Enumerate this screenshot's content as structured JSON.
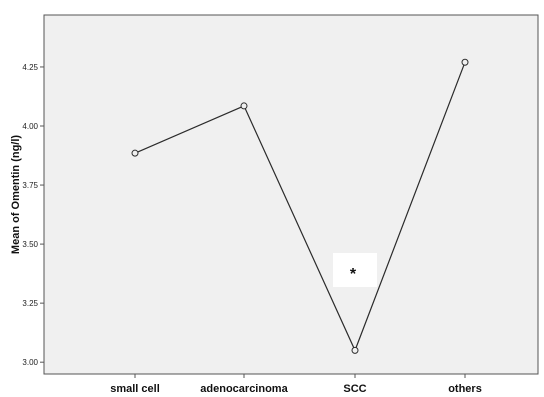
{
  "chart_data": {
    "type": "line",
    "title": "",
    "xlabel": "",
    "ylabel": "Mean of Omentin (ng/l)",
    "categories": [
      "small cell",
      "adenocarcinoma",
      "SCC",
      "others"
    ],
    "series": [
      {
        "values": [
          3.885,
          4.085,
          3.05,
          4.27
        ]
      }
    ],
    "ylim": [
      2.95,
      4.47
    ],
    "yticks": [
      "3.00",
      "3.25",
      "3.50",
      "3.75",
      "4.00",
      "4.25"
    ],
    "grid": false,
    "annotations": [
      {
        "category": "SCC",
        "text": "*"
      }
    ],
    "colors": {
      "plot_background": "#f0f0f0",
      "line": "#2b2b2b",
      "marker": "#2b2b2b"
    }
  }
}
